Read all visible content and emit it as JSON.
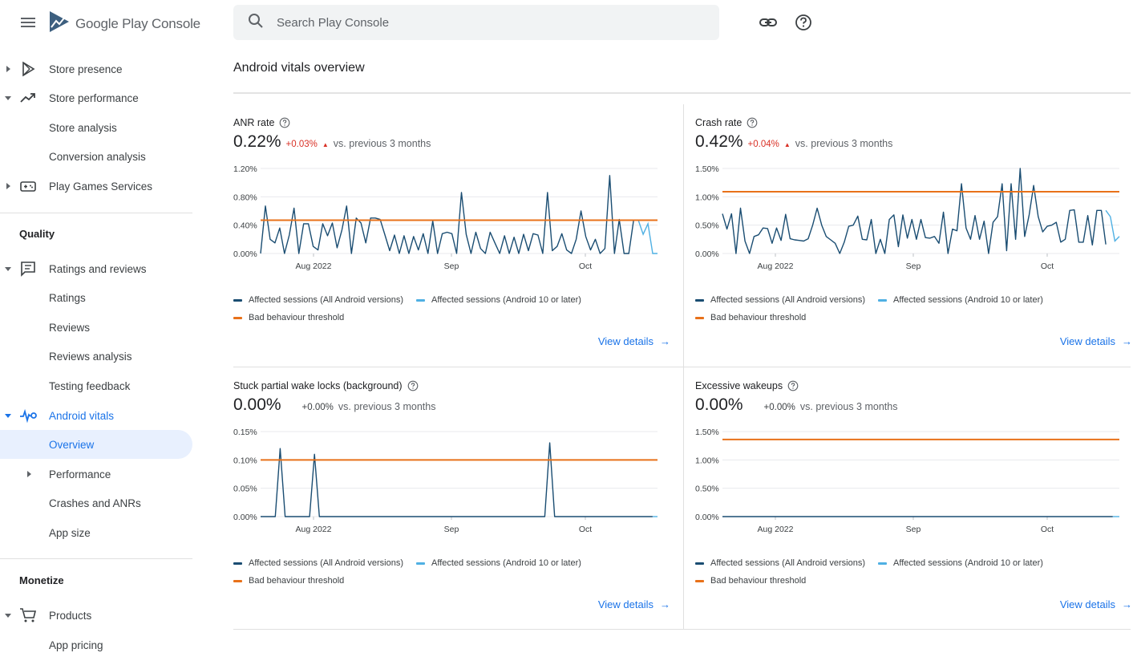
{
  "app": {
    "title_bold": "Google Play",
    "title_light": " Console"
  },
  "search": {
    "placeholder": "Search Play Console"
  },
  "sidebar": {
    "items": [
      {
        "label": "Store presence"
      },
      {
        "label": "Store performance"
      },
      {
        "label": "Store analysis"
      },
      {
        "label": "Conversion analysis"
      },
      {
        "label": "Play Games Services"
      }
    ],
    "quality_title": "Quality",
    "quality_items": [
      {
        "label": "Ratings and reviews"
      },
      {
        "label": "Ratings"
      },
      {
        "label": "Reviews"
      },
      {
        "label": "Reviews analysis"
      },
      {
        "label": "Testing feedback"
      },
      {
        "label": "Android vitals"
      },
      {
        "label": "Overview"
      },
      {
        "label": "Performance"
      },
      {
        "label": "Crashes and ANRs"
      },
      {
        "label": "App size"
      }
    ],
    "monetize_title": "Monetize",
    "monetize_items": [
      {
        "label": "Products"
      },
      {
        "label": "App pricing"
      }
    ]
  },
  "main": {
    "page_title": "Android vitals overview",
    "legend": {
      "all": "Affected sessions (All Android versions)",
      "android10": "Affected sessions (Android 10 or later)",
      "threshold": "Bad behaviour threshold"
    },
    "view_details": "View details",
    "cards": [
      {
        "title": "ANR rate",
        "value": "0.22%",
        "delta": "+0.03%",
        "vs": "vs. previous 3 months"
      },
      {
        "title": "Crash rate",
        "value": "0.42%",
        "delta": "+0.04%",
        "vs": "vs. previous 3 months"
      },
      {
        "title": "Stuck partial wake locks (background)",
        "value": "0.00%",
        "delta": "+0.00%",
        "vs": "vs. previous 3 months"
      },
      {
        "title": "Excessive wakeups",
        "value": "0.00%",
        "delta": "+0.00%",
        "vs": "vs. previous 3 months"
      }
    ]
  },
  "colors": {
    "series_all": "#1a4d72",
    "series_android10": "#4fb0e3",
    "threshold": "#e8711a",
    "link": "#1a73e8",
    "delta_bad": "#d93025"
  },
  "chart_data": [
    {
      "type": "line",
      "title": "ANR rate",
      "x_tick_labels": [
        "Aug 2022",
        "Sep",
        "Oct"
      ],
      "y_tick_labels": [
        "1.20%",
        "0.80%",
        "0.40%",
        "0.00%"
      ],
      "ylim": [
        0,
        1.2
      ],
      "threshold": 0.47,
      "series": [
        {
          "name": "Affected sessions (All Android versions)",
          "values": [
            0,
            0.67,
            0.2,
            0.15,
            0.36,
            0,
            0.26,
            0.64,
            0,
            0.42,
            0.42,
            0.1,
            0.05,
            0.42,
            0.25,
            0.43,
            0.08,
            0.33,
            0.67,
            0,
            0.5,
            0.43,
            0.15,
            0.5,
            0.5,
            0.48,
            0.26,
            0.04,
            0.26,
            0,
            0.25,
            0,
            0.24,
            0.05,
            0.28,
            0,
            0.46,
            0,
            0.28,
            0.3,
            0.28,
            0,
            0.86,
            0.27,
            0,
            0.3,
            0.07,
            0,
            0.3,
            0.15,
            0,
            0.25,
            0,
            0.23,
            0,
            0.27,
            0.04,
            0.28,
            0.26,
            0,
            0.86,
            0.04,
            0.1,
            0.28,
            0.05,
            0,
            0.2,
            0.6,
            0.24,
            0.05,
            0.2,
            0,
            0.07,
            1.1,
            0,
            0.48,
            0,
            0,
            0.47,
            0.47
          ],
          "color": "#1a4d72"
        },
        {
          "name": "Affected sessions (Android 10 or later)",
          "values": [
            0.47,
            0.27,
            0.42,
            0,
            0
          ],
          "color": "#4fb0e3"
        },
        {
          "name": "Bad behaviour threshold",
          "color": "#e8711a"
        }
      ]
    },
    {
      "type": "line",
      "title": "Crash rate",
      "x_tick_labels": [
        "Aug 2022",
        "Sep",
        "Oct"
      ],
      "y_tick_labels": [
        "1.50%",
        "1.00%",
        "0.50%",
        "0.00%"
      ],
      "ylim": [
        0,
        1.5
      ],
      "threshold": 1.09,
      "series": [
        {
          "name": "Affected sessions (All Android versions)",
          "values": [
            0.7,
            0.43,
            0.7,
            0,
            0.8,
            0.22,
            0,
            0.3,
            0.33,
            0.45,
            0.44,
            0.18,
            0.45,
            0.23,
            0.69,
            0.26,
            0.24,
            0.23,
            0.22,
            0.26,
            0.5,
            0.8,
            0.5,
            0.3,
            0.24,
            0.18,
            0,
            0.2,
            0.48,
            0.5,
            0.66,
            0.25,
            0.24,
            0.6,
            0,
            0.25,
            0,
            0.6,
            0.68,
            0.12,
            0.68,
            0.27,
            0.6,
            0.25,
            0.6,
            0.28,
            0.27,
            0.3,
            0.18,
            0.73,
            0,
            0.43,
            0.4,
            1.23,
            0.45,
            0.25,
            0.67,
            0.25,
            0.57,
            0,
            0.55,
            0.65,
            1.23,
            0.05,
            1.23,
            0.25,
            1.5,
            0.3,
            0.68,
            1.2,
            0.65,
            0.38,
            0.48,
            0.5,
            0.55,
            0.2,
            0.25,
            0.76,
            0.77,
            0.2,
            0.2,
            0.67,
            0.15,
            0.76,
            0.76,
            0.16
          ],
          "color": "#1a4d72"
        },
        {
          "name": "Affected sessions (Android 10 or later)",
          "values": [
            0.76,
            0.65,
            0.22,
            0.3
          ],
          "color": "#4fb0e3"
        },
        {
          "name": "Bad behaviour threshold",
          "color": "#e8711a"
        }
      ]
    },
    {
      "type": "line",
      "title": "Stuck partial wake locks (background)",
      "x_tick_labels": [
        "Aug 2022",
        "Sep",
        "Oct"
      ],
      "y_tick_labels": [
        "0.15%",
        "0.10%",
        "0.05%",
        "0.00%"
      ],
      "ylim": [
        0,
        0.15
      ],
      "threshold": 0.1,
      "series": [
        {
          "name": "Affected sessions (All Android versions)",
          "values": [
            0,
            0,
            0,
            0,
            0.12,
            0,
            0,
            0,
            0,
            0,
            0,
            0.11,
            0,
            0,
            0,
            0,
            0,
            0,
            0,
            0,
            0,
            0,
            0,
            0,
            0,
            0,
            0,
            0,
            0,
            0,
            0,
            0,
            0,
            0,
            0,
            0,
            0,
            0,
            0,
            0,
            0,
            0,
            0,
            0,
            0,
            0,
            0,
            0,
            0,
            0,
            0,
            0,
            0,
            0,
            0,
            0,
            0,
            0,
            0,
            0.13,
            0,
            0,
            0,
            0,
            0,
            0,
            0,
            0,
            0,
            0,
            0,
            0,
            0,
            0,
            0,
            0,
            0,
            0,
            0,
            0,
            0
          ],
          "color": "#1a4d72"
        },
        {
          "name": "Affected sessions (Android 10 or later)",
          "values": [
            0,
            0
          ],
          "color": "#4fb0e3"
        },
        {
          "name": "Bad behaviour threshold",
          "color": "#e8711a"
        }
      ]
    },
    {
      "type": "line",
      "title": "Excessive wakeups",
      "x_tick_labels": [
        "Aug 2022",
        "Sep",
        "Oct"
      ],
      "y_tick_labels": [
        "1.50%",
        "1.00%",
        "0.50%",
        "0.00%"
      ],
      "ylim": [
        0,
        1.5
      ],
      "threshold": 1.36,
      "series": [
        {
          "name": "Affected sessions (All Android versions)",
          "values": [
            0,
            0,
            0,
            0,
            0,
            0,
            0,
            0,
            0,
            0,
            0,
            0,
            0,
            0,
            0,
            0,
            0,
            0,
            0,
            0,
            0,
            0,
            0,
            0,
            0,
            0,
            0,
            0,
            0,
            0,
            0,
            0,
            0,
            0,
            0,
            0,
            0,
            0,
            0,
            0,
            0,
            0,
            0,
            0,
            0,
            0,
            0,
            0,
            0,
            0,
            0,
            0,
            0,
            0,
            0,
            0,
            0,
            0,
            0,
            0
          ],
          "color": "#1a4d72"
        },
        {
          "name": "Affected sessions (Android 10 or later)",
          "values": [
            0,
            0
          ],
          "color": "#4fb0e3"
        },
        {
          "name": "Bad behaviour threshold",
          "color": "#e8711a"
        }
      ]
    }
  ]
}
